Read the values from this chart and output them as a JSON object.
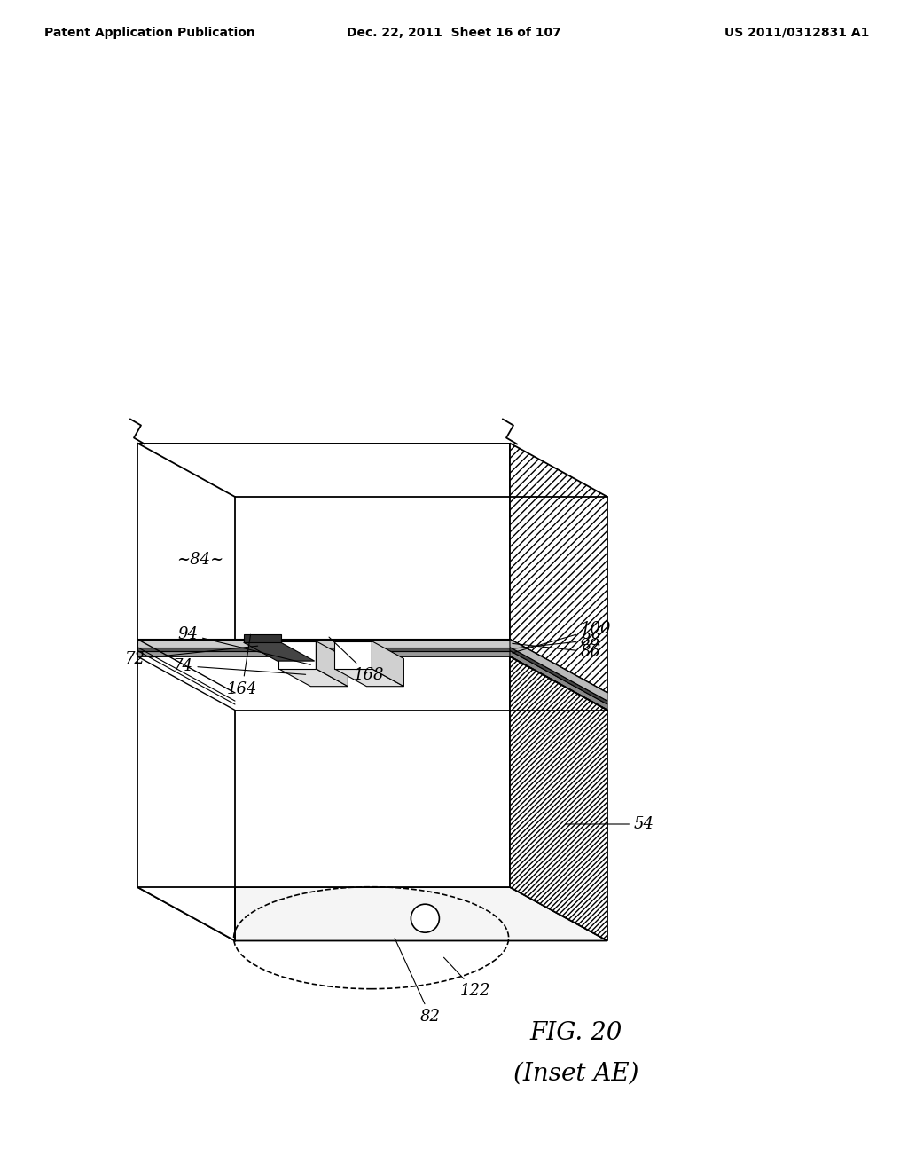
{
  "header_left": "Patent Application Publication",
  "header_mid": "Dec. 22, 2011  Sheet 16 of 107",
  "header_right": "US 2011/0312831 A1",
  "fig_label": "FIG. 20",
  "fig_sublabel": "(Inset AE)",
  "bg_color": "#ffffff",
  "line_color": "#000000"
}
